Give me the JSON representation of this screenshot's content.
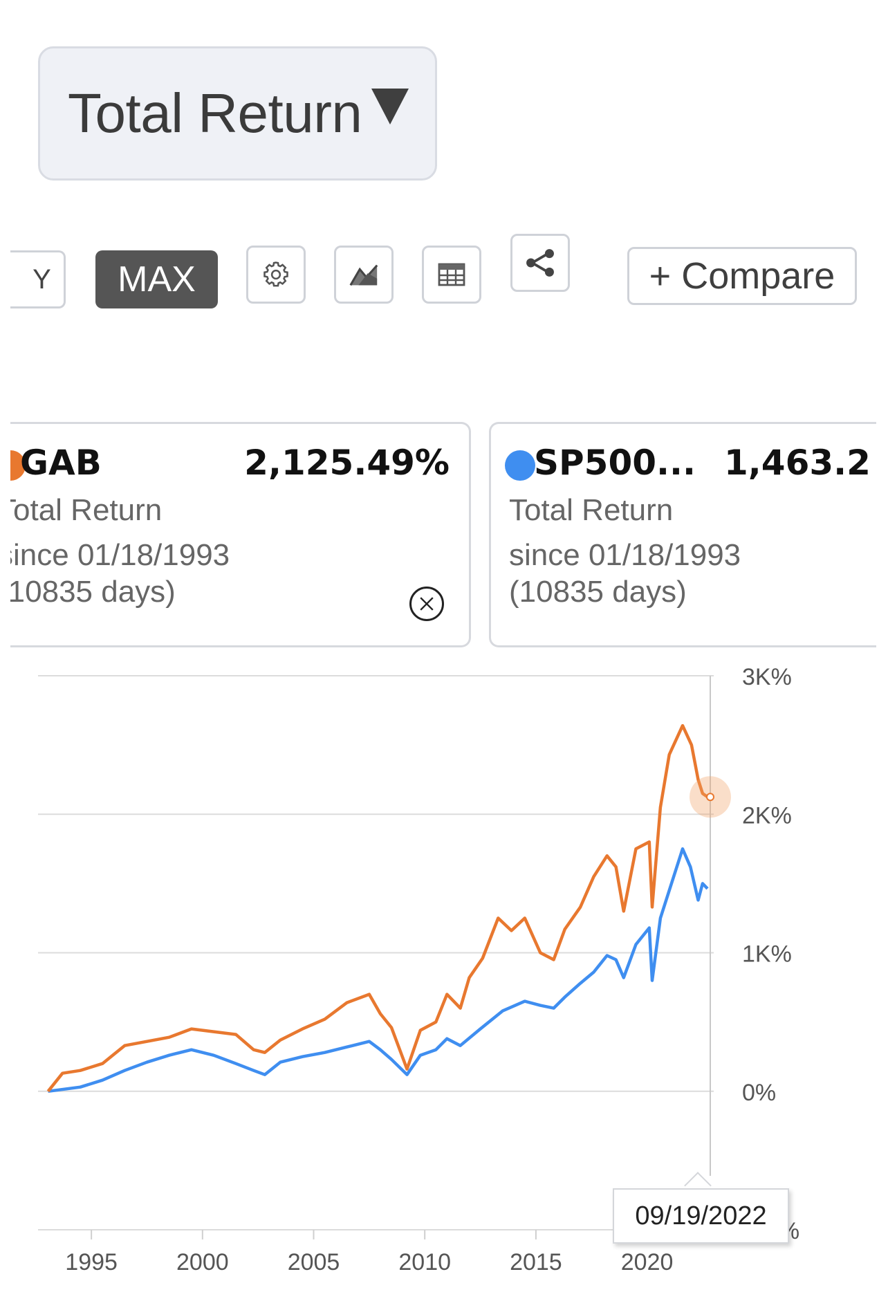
{
  "metric_dropdown": {
    "label": "Total Return"
  },
  "toolbar": {
    "range_partial_label": "Y",
    "max_label": "MAX",
    "compare_label": "+ Compare",
    "icons": [
      "gear-icon",
      "chart-type-icon",
      "table-icon",
      "share-icon"
    ]
  },
  "cards": [
    {
      "ticker": "GAB",
      "value": "2,125.49%",
      "metric": "Total Return",
      "since": "since 01/18/1993",
      "days": "(10835 days)",
      "color": "#e8782f"
    },
    {
      "ticker": "SP500...",
      "value": "1,463.2",
      "metric": "Total Return",
      "since": "since 01/18/1993",
      "days": "(10835 days)",
      "color": "#3f8ef0"
    }
  ],
  "chart_data": {
    "type": "line",
    "x_tick_labels": [
      "1995",
      "2000",
      "2005",
      "2010",
      "2015",
      "2020"
    ],
    "y_tick_labels": [
      "3K%",
      "2K%",
      "1K%",
      "0%",
      "-1K%"
    ],
    "ylim": [
      -1000,
      3000
    ],
    "xlim": [
      1992.6,
      2023.0
    ],
    "grid": true,
    "crosshair_date": "09/19/2022",
    "series": [
      {
        "name": "GAB",
        "color": "#e8782f",
        "x": [
          1993.05,
          1993.7,
          1994.5,
          1995.5,
          1996.5,
          1997.5,
          1998.5,
          1999.5,
          2000.5,
          2001.5,
          2002.3,
          2002.8,
          2003.5,
          2004.5,
          2005.5,
          2006.5,
          2007.5,
          2008.0,
          2008.5,
          2009.2,
          2009.8,
          2010.5,
          2011.0,
          2011.6,
          2012.0,
          2012.6,
          2013.3,
          2013.9,
          2014.5,
          2015.2,
          2015.8,
          2016.3,
          2017.0,
          2017.6,
          2018.2,
          2018.6,
          2018.95,
          2019.5,
          2020.1,
          2020.23,
          2020.6,
          2021.0,
          2021.6,
          2022.0,
          2022.3,
          2022.5,
          2022.72
        ],
        "y": [
          0,
          130,
          150,
          200,
          330,
          360,
          390,
          450,
          430,
          410,
          300,
          280,
          370,
          450,
          520,
          640,
          700,
          560,
          460,
          160,
          440,
          500,
          700,
          600,
          820,
          960,
          1250,
          1160,
          1250,
          1000,
          950,
          1170,
          1330,
          1550,
          1700,
          1620,
          1300,
          1750,
          1800,
          1330,
          2050,
          2430,
          2640,
          2500,
          2250,
          2150,
          2125
        ]
      },
      {
        "name": "SP500...",
        "color": "#3f8ef0",
        "x": [
          1993.05,
          1994.5,
          1995.5,
          1996.5,
          1997.5,
          1998.5,
          1999.5,
          2000.5,
          2001.5,
          2002.3,
          2002.8,
          2003.5,
          2004.5,
          2005.5,
          2006.5,
          2007.5,
          2008.0,
          2008.5,
          2009.2,
          2009.8,
          2010.5,
          2011.0,
          2011.6,
          2012.5,
          2013.5,
          2014.5,
          2015.2,
          2015.8,
          2016.3,
          2017.0,
          2017.6,
          2018.2,
          2018.6,
          2018.95,
          2019.5,
          2020.1,
          2020.23,
          2020.6,
          2021.0,
          2021.6,
          2021.95,
          2022.3,
          2022.5,
          2022.72
        ],
        "y": [
          0,
          30,
          80,
          150,
          210,
          260,
          300,
          260,
          200,
          150,
          120,
          210,
          250,
          280,
          320,
          360,
          300,
          230,
          120,
          260,
          300,
          380,
          330,
          450,
          580,
          650,
          620,
          600,
          680,
          780,
          860,
          980,
          950,
          820,
          1060,
          1180,
          800,
          1250,
          1450,
          1750,
          1620,
          1380,
          1500,
          1463
        ]
      }
    ]
  }
}
